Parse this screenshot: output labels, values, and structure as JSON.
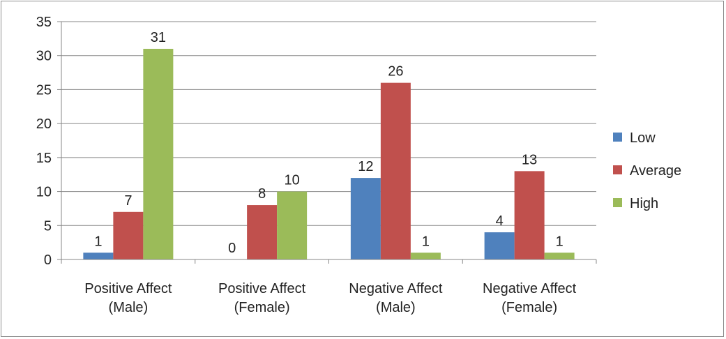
{
  "chart_data": {
    "type": "bar",
    "title": "",
    "xlabel": "",
    "ylabel": "",
    "ylim": [
      0,
      35
    ],
    "yticks": [
      0,
      5,
      10,
      15,
      20,
      25,
      30,
      35
    ],
    "grid": true,
    "legend_position": "right",
    "categories": [
      [
        "Positive Affect",
        "(Male)"
      ],
      [
        "Positive Affect",
        "(Female)"
      ],
      [
        "Negative Affect",
        "(Male)"
      ],
      [
        "Negative Affect",
        "(Female)"
      ]
    ],
    "series": [
      {
        "name": "Low",
        "color": "#4f81bd",
        "values": [
          1,
          0,
          12,
          4
        ]
      },
      {
        "name": "Average",
        "color": "#c0504d",
        "values": [
          7,
          8,
          26,
          13
        ]
      },
      {
        "name": "High",
        "color": "#9bbb59",
        "values": [
          31,
          10,
          1,
          1
        ]
      }
    ]
  }
}
